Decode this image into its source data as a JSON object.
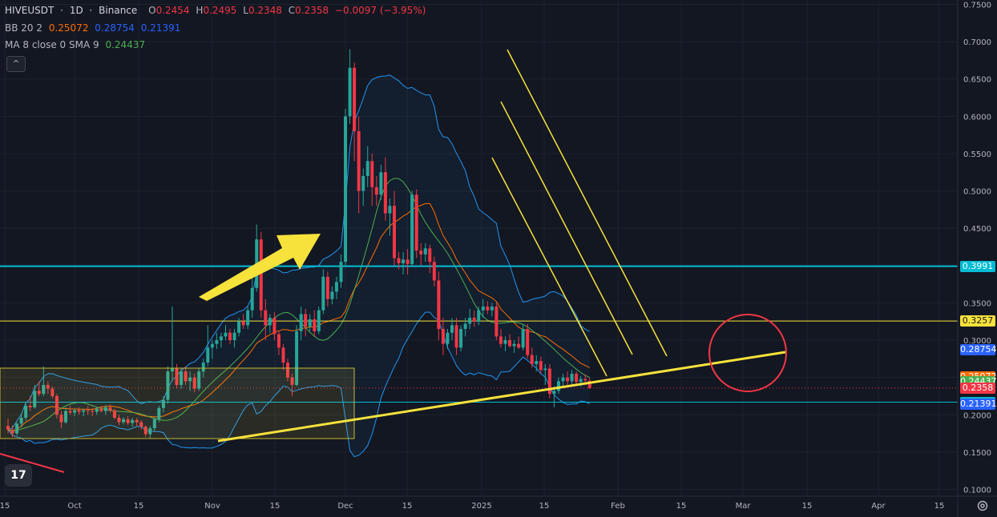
{
  "header": {
    "symbol": "HIVEUSDT",
    "sep1": "·",
    "interval": "1D",
    "sep2": "·",
    "exchange": "Binance",
    "o_label": "O",
    "o": "0.2454",
    "h_label": "H",
    "h": "0.2495",
    "l_label": "L",
    "l": "0.2348",
    "c_label": "C",
    "c": "0.2358",
    "change": "−0.0097 (−3.95%)"
  },
  "indicators": {
    "bb": {
      "label": "BB 20 2",
      "basis": "0.25072",
      "upper": "0.28754",
      "lower": "0.21391"
    },
    "ma": {
      "label": "MA 8 close 0 SMA 9",
      "value": "0.24437"
    }
  },
  "collapse_glyph": "^",
  "logo_text": "17",
  "settings_icon": "gear-icon",
  "colors": {
    "bg": "#131722",
    "grid": "#1e222d",
    "up": "#26a69a",
    "down": "#f23645",
    "bb_upper": "#2962ff",
    "bb_basis": "#ff6d00",
    "ma": "#4caf50",
    "cyan": "#00bcd4",
    "yellow": "#f7e23b"
  },
  "price_tags": [
    {
      "text": "0.3991",
      "price": 0.3991,
      "color": "#00bcd4"
    },
    {
      "text": "0.3257",
      "price": 0.3257,
      "color": "#f7e23b",
      "dark": true
    },
    {
      "text": "0.28754",
      "price": 0.28754,
      "color": "#2962ff"
    },
    {
      "text": "0.25072",
      "price": 0.25072,
      "color": "#ff6d00"
    },
    {
      "text": "0.24437",
      "price": 0.24437,
      "color": "#4caf50"
    },
    {
      "text": "0.2358",
      "price": 0.2358,
      "color": "#f23645"
    },
    {
      "text": "0.2169",
      "price": 0.2169,
      "color": "#00bcd4"
    },
    {
      "text": "0.21391",
      "price": 0.21391,
      "color": "#2962ff"
    }
  ],
  "chart_data": {
    "type": "candlestick",
    "title": "HIVEUSDT · 1D · Binance",
    "ylim": [
      0.1,
      0.75
    ],
    "y_ticks": [
      "0.7500",
      "0.7000",
      "0.6500",
      "0.6000",
      "0.5500",
      "0.5000",
      "0.4500",
      "0.4000",
      "0.3500",
      "0.3000",
      "0.2500",
      "0.2000",
      "0.1500",
      "0.1000"
    ],
    "x_ticks": [
      "15",
      "Oct",
      "15",
      "Nov",
      "15",
      "Dec",
      "15",
      "2025",
      "15",
      "Feb",
      "15",
      "Mar",
      "15",
      "Apr",
      "15"
    ],
    "horizontal_lines": [
      {
        "name": "resistance-cyan",
        "price": 0.3991
      },
      {
        "name": "resistance-yellow",
        "price": 0.3257
      },
      {
        "name": "support-cyan",
        "price": 0.2169
      }
    ],
    "candles": [
      [
        0.185,
        0.195,
        0.175,
        0.18
      ],
      [
        0.18,
        0.186,
        0.17,
        0.175
      ],
      [
        0.175,
        0.19,
        0.172,
        0.188
      ],
      [
        0.188,
        0.202,
        0.183,
        0.196
      ],
      [
        0.196,
        0.215,
        0.192,
        0.212
      ],
      [
        0.212,
        0.225,
        0.205,
        0.21
      ],
      [
        0.21,
        0.24,
        0.208,
        0.232
      ],
      [
        0.232,
        0.245,
        0.225,
        0.228
      ],
      [
        0.228,
        0.265,
        0.225,
        0.24
      ],
      [
        0.24,
        0.245,
        0.228,
        0.235
      ],
      [
        0.235,
        0.238,
        0.222,
        0.225
      ],
      [
        0.225,
        0.228,
        0.195,
        0.2
      ],
      [
        0.2,
        0.205,
        0.182,
        0.19
      ],
      [
        0.19,
        0.21,
        0.188,
        0.205
      ],
      [
        0.205,
        0.212,
        0.2,
        0.203
      ],
      [
        0.203,
        0.208,
        0.198,
        0.206
      ],
      [
        0.206,
        0.21,
        0.2,
        0.204
      ],
      [
        0.204,
        0.208,
        0.198,
        0.206
      ],
      [
        0.206,
        0.212,
        0.2,
        0.205
      ],
      [
        0.205,
        0.209,
        0.198,
        0.204
      ],
      [
        0.204,
        0.21,
        0.2,
        0.208
      ],
      [
        0.208,
        0.212,
        0.203,
        0.205
      ],
      [
        0.205,
        0.213,
        0.2,
        0.21
      ],
      [
        0.21,
        0.214,
        0.203,
        0.206
      ],
      [
        0.206,
        0.208,
        0.194,
        0.196
      ],
      [
        0.196,
        0.2,
        0.186,
        0.19
      ],
      [
        0.19,
        0.197,
        0.187,
        0.194
      ],
      [
        0.194,
        0.198,
        0.186,
        0.189
      ],
      [
        0.189,
        0.196,
        0.184,
        0.193
      ],
      [
        0.193,
        0.196,
        0.185,
        0.19
      ],
      [
        0.19,
        0.193,
        0.18,
        0.184
      ],
      [
        0.184,
        0.186,
        0.17,
        0.174
      ],
      [
        0.174,
        0.185,
        0.168,
        0.182
      ],
      [
        0.182,
        0.197,
        0.178,
        0.194
      ],
      [
        0.194,
        0.212,
        0.19,
        0.209
      ],
      [
        0.209,
        0.225,
        0.203,
        0.22
      ],
      [
        0.22,
        0.265,
        0.215,
        0.258
      ],
      [
        0.258,
        0.345,
        0.245,
        0.262
      ],
      [
        0.262,
        0.268,
        0.235,
        0.24
      ],
      [
        0.24,
        0.262,
        0.235,
        0.258
      ],
      [
        0.258,
        0.265,
        0.24,
        0.245
      ],
      [
        0.245,
        0.258,
        0.232,
        0.25
      ],
      [
        0.25,
        0.255,
        0.23,
        0.235
      ],
      [
        0.235,
        0.262,
        0.232,
        0.258
      ],
      [
        0.258,
        0.275,
        0.25,
        0.27
      ],
      [
        0.27,
        0.32,
        0.265,
        0.29
      ],
      [
        0.29,
        0.3,
        0.275,
        0.295
      ],
      [
        0.295,
        0.31,
        0.288,
        0.3
      ],
      [
        0.3,
        0.31,
        0.29,
        0.305
      ],
      [
        0.305,
        0.32,
        0.3,
        0.31
      ],
      [
        0.31,
        0.315,
        0.295,
        0.3
      ],
      [
        0.3,
        0.315,
        0.29,
        0.31
      ],
      [
        0.31,
        0.33,
        0.305,
        0.325
      ],
      [
        0.325,
        0.335,
        0.315,
        0.32
      ],
      [
        0.32,
        0.345,
        0.315,
        0.34
      ],
      [
        0.34,
        0.385,
        0.33,
        0.37
      ],
      [
        0.37,
        0.455,
        0.365,
        0.435
      ],
      [
        0.435,
        0.445,
        0.33,
        0.34
      ],
      [
        0.34,
        0.355,
        0.3,
        0.32
      ],
      [
        0.32,
        0.335,
        0.31,
        0.33
      ],
      [
        0.33,
        0.338,
        0.3,
        0.308
      ],
      [
        0.308,
        0.312,
        0.28,
        0.29
      ],
      [
        0.29,
        0.295,
        0.26,
        0.27
      ],
      [
        0.27,
        0.275,
        0.245,
        0.25
      ],
      [
        0.25,
        0.255,
        0.225,
        0.24
      ],
      [
        0.24,
        0.32,
        0.238,
        0.312
      ],
      [
        0.312,
        0.345,
        0.3,
        0.335
      ],
      [
        0.335,
        0.342,
        0.305,
        0.318
      ],
      [
        0.318,
        0.335,
        0.312,
        0.328
      ],
      [
        0.328,
        0.34,
        0.305,
        0.312
      ],
      [
        0.312,
        0.345,
        0.308,
        0.34
      ],
      [
        0.34,
        0.395,
        0.335,
        0.385
      ],
      [
        0.385,
        0.392,
        0.345,
        0.355
      ],
      [
        0.355,
        0.372,
        0.348,
        0.365
      ],
      [
        0.365,
        0.385,
        0.355,
        0.378
      ],
      [
        0.378,
        0.415,
        0.37,
        0.405
      ],
      [
        0.405,
        0.61,
        0.4,
        0.6
      ],
      [
        0.6,
        0.69,
        0.59,
        0.665
      ],
      [
        0.665,
        0.672,
        0.54,
        0.58
      ],
      [
        0.58,
        0.6,
        0.47,
        0.5
      ],
      [
        0.5,
        0.53,
        0.48,
        0.52
      ],
      [
        0.52,
        0.56,
        0.505,
        0.54
      ],
      [
        0.54,
        0.55,
        0.48,
        0.505
      ],
      [
        0.505,
        0.52,
        0.48,
        0.495
      ],
      [
        0.495,
        0.535,
        0.488,
        0.525
      ],
      [
        0.525,
        0.545,
        0.46,
        0.47
      ],
      [
        0.47,
        0.49,
        0.44,
        0.48
      ],
      [
        0.48,
        0.5,
        0.4,
        0.41
      ],
      [
        0.41,
        0.418,
        0.395,
        0.403
      ],
      [
        0.403,
        0.418,
        0.388,
        0.408
      ],
      [
        0.408,
        0.422,
        0.388,
        0.402
      ],
      [
        0.402,
        0.5,
        0.398,
        0.495
      ],
      [
        0.495,
        0.502,
        0.41,
        0.42
      ],
      [
        0.42,
        0.43,
        0.4,
        0.415
      ],
      [
        0.415,
        0.43,
        0.405,
        0.423
      ],
      [
        0.423,
        0.428,
        0.39,
        0.405
      ],
      [
        0.405,
        0.412,
        0.372,
        0.38
      ],
      [
        0.38,
        0.392,
        0.3,
        0.315
      ],
      [
        0.315,
        0.33,
        0.28,
        0.295
      ],
      [
        0.295,
        0.315,
        0.288,
        0.31
      ],
      [
        0.31,
        0.33,
        0.3,
        0.32
      ],
      [
        0.32,
        0.33,
        0.28,
        0.29
      ],
      [
        0.29,
        0.32,
        0.285,
        0.315
      ],
      [
        0.315,
        0.33,
        0.305,
        0.322
      ],
      [
        0.322,
        0.342,
        0.315,
        0.33
      ],
      [
        0.33,
        0.34,
        0.318,
        0.325
      ],
      [
        0.325,
        0.345,
        0.32,
        0.34
      ],
      [
        0.34,
        0.355,
        0.33,
        0.345
      ],
      [
        0.345,
        0.352,
        0.335,
        0.34
      ],
      [
        0.34,
        0.35,
        0.332,
        0.345
      ],
      [
        0.345,
        0.35,
        0.3,
        0.305
      ],
      [
        0.305,
        0.315,
        0.29,
        0.295
      ],
      [
        0.295,
        0.305,
        0.285,
        0.3
      ],
      [
        0.3,
        0.308,
        0.29,
        0.292
      ],
      [
        0.292,
        0.3,
        0.283,
        0.295
      ],
      [
        0.295,
        0.305,
        0.288,
        0.29
      ],
      [
        0.29,
        0.322,
        0.286,
        0.315
      ],
      [
        0.315,
        0.322,
        0.275,
        0.28
      ],
      [
        0.28,
        0.29,
        0.263,
        0.268
      ],
      [
        0.268,
        0.28,
        0.258,
        0.272
      ],
      [
        0.272,
        0.278,
        0.255,
        0.26
      ],
      [
        0.26,
        0.268,
        0.24,
        0.262
      ],
      [
        0.262,
        0.268,
        0.222,
        0.228
      ],
      [
        0.228,
        0.238,
        0.21,
        0.232
      ],
      [
        0.232,
        0.25,
        0.228,
        0.245
      ],
      [
        0.245,
        0.255,
        0.238,
        0.25
      ],
      [
        0.25,
        0.258,
        0.24,
        0.245
      ],
      [
        0.245,
        0.26,
        0.24,
        0.255
      ],
      [
        0.255,
        0.258,
        0.24,
        0.244
      ],
      [
        0.244,
        0.252,
        0.238,
        0.248
      ],
      [
        0.248,
        0.254,
        0.24,
        0.246
      ],
      [
        0.2454,
        0.2495,
        0.2348,
        0.2358
      ]
    ]
  }
}
